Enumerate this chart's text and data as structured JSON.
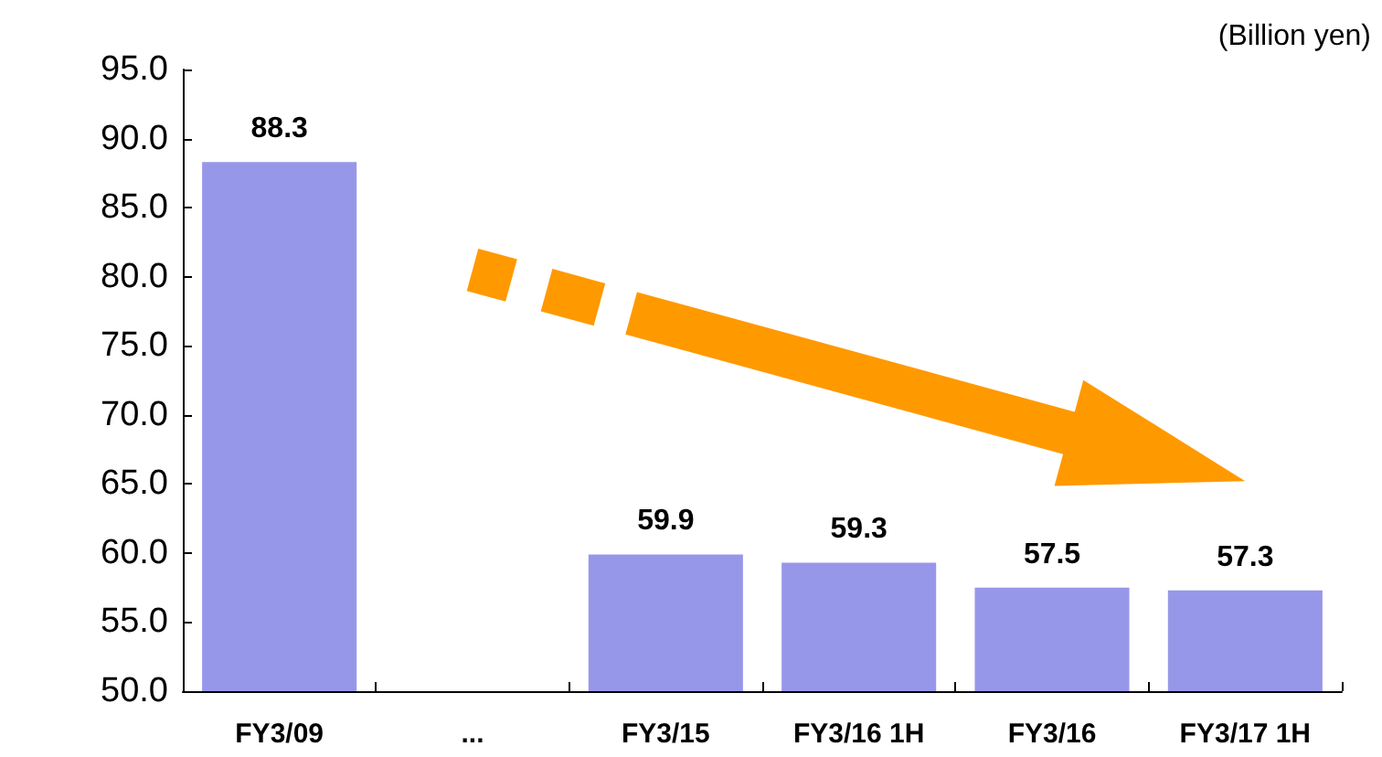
{
  "chart_data": {
    "type": "bar",
    "categories": [
      "FY3/09",
      "...",
      "FY3/15",
      "FY3/16 1H",
      "FY3/16",
      "FY3/17 1H"
    ],
    "values": [
      88.3,
      null,
      59.9,
      59.3,
      57.5,
      57.3
    ],
    "color": "#9797ea",
    "ylim": [
      50,
      95
    ],
    "yticks": [
      {
        "value": 50,
        "label": "50.0"
      },
      {
        "value": 55,
        "label": "55.0"
      },
      {
        "value": 60,
        "label": "60.0"
      },
      {
        "value": 65,
        "label": "65.0"
      },
      {
        "value": 70,
        "label": "70.0"
      },
      {
        "value": 75,
        "label": "75.0"
      },
      {
        "value": 80,
        "label": "80.0"
      },
      {
        "value": 85,
        "label": "85.0"
      },
      {
        "value": 90,
        "label": "90.0"
      },
      {
        "value": 95,
        "label": "95.0"
      }
    ],
    "annotations": [
      "(Billion yen)"
    ],
    "data_labels": true,
    "grid": false
  }
}
